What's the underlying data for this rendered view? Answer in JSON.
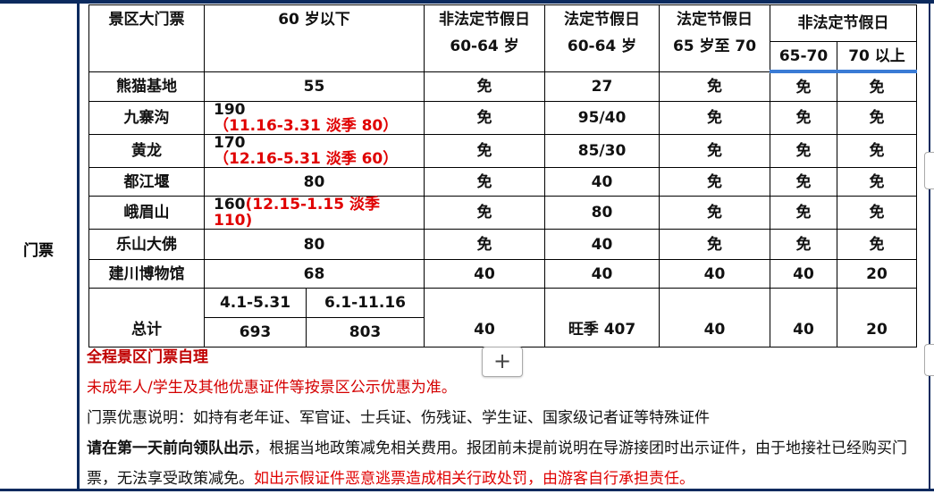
{
  "section_label": "门票",
  "table": {
    "header": {
      "c0": "景区大门票",
      "c1": "60 岁以下",
      "c2": [
        "非法定节假日",
        "60-64 岁"
      ],
      "c3": [
        "法定节假日",
        "60-64 岁"
      ],
      "c4": [
        "法定节假日",
        "65 岁至 70"
      ],
      "c5": "非法定节假日",
      "c5a": "65-70",
      "c5b": "70 以上"
    },
    "rows": [
      {
        "name": "熊猫基地",
        "under60": "55",
        "under60_note": "",
        "c2": "免",
        "c3": "27",
        "c4": "免",
        "c5a": "免",
        "c5b": "免"
      },
      {
        "name": "九寨沟",
        "under60": "190",
        "under60_note": "（11.16-3.31 淡季 80）",
        "c2": "免",
        "c3": "95/40",
        "c4": "免",
        "c5a": "免",
        "c5b": "免"
      },
      {
        "name": "黄龙",
        "under60": "170",
        "under60_note": "（12.16-5.31 淡季 60）",
        "c2": "免",
        "c3": "85/30",
        "c4": "免",
        "c5a": "免",
        "c5b": "免"
      },
      {
        "name": "都江堰",
        "under60": "80",
        "under60_note": "",
        "c2": "免",
        "c3": "40",
        "c4": "免",
        "c5a": "免",
        "c5b": "免"
      },
      {
        "name": "峨眉山",
        "under60": "160",
        "under60_note": "(12.15-1.15 淡季 110)",
        "c2": "免",
        "c3": "80",
        "c4": "免",
        "c5a": "免",
        "c5b": "免"
      },
      {
        "name": "乐山大佛",
        "under60": "80",
        "under60_note": "",
        "c2": "免",
        "c3": "40",
        "c4": "免",
        "c5a": "免",
        "c5b": "免"
      },
      {
        "name": "建川博物馆",
        "under60": "68",
        "under60_note": "",
        "c2": "40",
        "c3": "40",
        "c4": "40",
        "c5a": "40",
        "c5b": "20"
      }
    ],
    "total": {
      "label": "总计",
      "period1": "4.1-5.31",
      "period2": "6.1-11.16",
      "value1": "693",
      "value2": "803",
      "c2": "40",
      "c3": "旺季 407",
      "c4": "40",
      "c5a": "40",
      "c5b": "20"
    }
  },
  "notes": {
    "line1": "全程景区门票自理",
    "line2": "未成年人/学生及其他优惠证件等按景区公示优惠为准。",
    "line3": "门票优惠说明：如持有老年证、军官证、士兵证、伤残证、学生证、国家级记者证等特殊证件",
    "line4_bold": "请在第一天前向领队出示",
    "line4_rest": "，根据当地政策减免相关费用。报团前未提前说明在导游接团时出示证件，由于地接社已经购买门票，无法享受政策减免。",
    "line4_red": "如出示假证件恶意逃票造成相关行政处罚，由游客自行承担责任。"
  },
  "add_button_label": "+",
  "colors": {
    "border": "#0b2a5e",
    "accent_line": "#3a7bd5",
    "red": "#e00000",
    "dark_red": "#c00000"
  }
}
